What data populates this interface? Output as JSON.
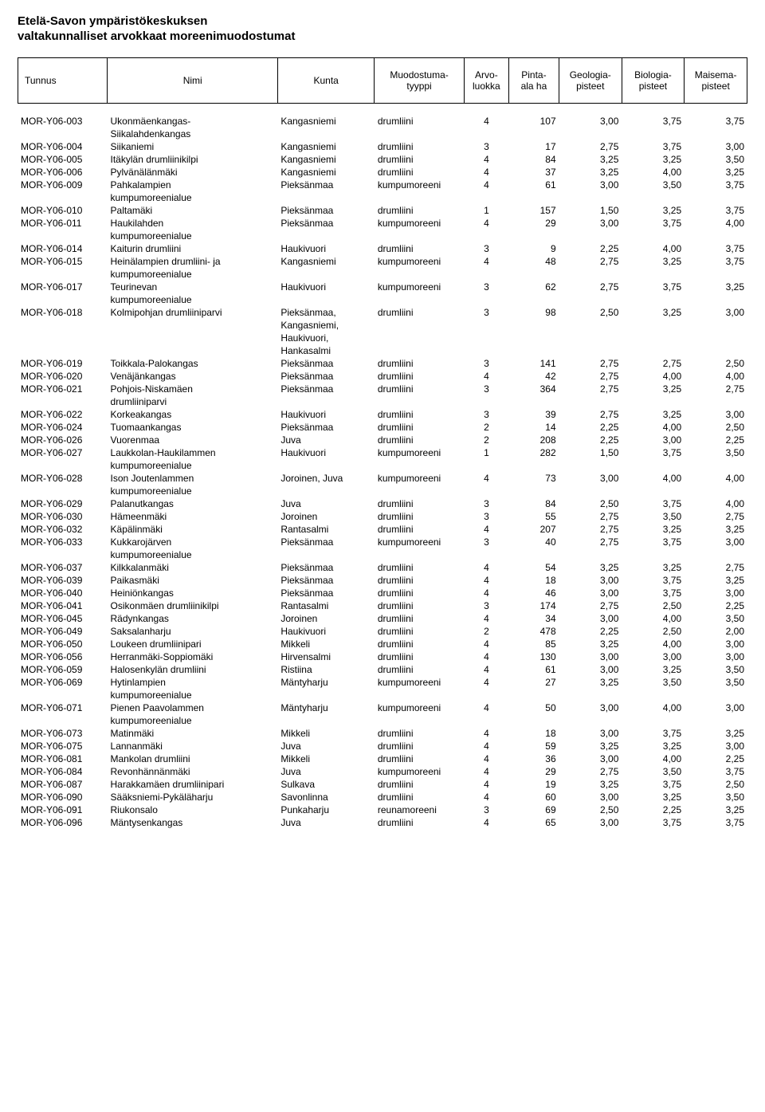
{
  "title_line1": "Etelä-Savon ympäristökeskuksen",
  "title_line2": "valtakunnalliset arvokkaat moreenimuodostumat",
  "columns": {
    "tunnus": "Tunnus",
    "nimi": "Nimi",
    "kunta": "Kunta",
    "tyyppi": "Muodostuma-\ntyyppi",
    "arvo": "Arvo-\nluokka",
    "pinta": "Pinta-\nala ha",
    "geo": "Geologia-\npisteet",
    "bio": "Biologia-\npisteet",
    "mai": "Maisema-\npisteet"
  },
  "rows": [
    {
      "t": "MOR-Y06-003",
      "n1": "Ukonmäenkangas-",
      "n2": "Siikalahdenkangas",
      "k": "Kangasniemi",
      "ty": "drumliini",
      "a": "4",
      "p": "107",
      "g": "3,00",
      "b": "3,75",
      "m": "3,75"
    },
    {
      "t": "MOR-Y06-004",
      "n1": "Siikaniemi",
      "k": "Kangasniemi",
      "ty": "drumliini",
      "a": "3",
      "p": "17",
      "g": "2,75",
      "b": "3,75",
      "m": "3,00"
    },
    {
      "t": "MOR-Y06-005",
      "n1": "Itäkylän drumliinikilpi",
      "k": "Kangasniemi",
      "ty": "drumliini",
      "a": "4",
      "p": "84",
      "g": "3,25",
      "b": "3,25",
      "m": "3,50"
    },
    {
      "t": "MOR-Y06-006",
      "n1": "Pylvänälänmäki",
      "k": "Kangasniemi",
      "ty": "drumliini",
      "a": "4",
      "p": "37",
      "g": "3,25",
      "b": "4,00",
      "m": "3,25"
    },
    {
      "t": "MOR-Y06-009",
      "n1": "Pahkalampien",
      "n2": "kumpumoreenialue",
      "k": "Pieksänmaa",
      "ty": "kumpumoreeni",
      "a": "4",
      "p": "61",
      "g": "3,00",
      "b": "3,50",
      "m": "3,75"
    },
    {
      "t": "MOR-Y06-010",
      "n1": "Paltamäki",
      "k": "Pieksänmaa",
      "ty": "drumliini",
      "a": "1",
      "p": "157",
      "g": "1,50",
      "b": "3,25",
      "m": "3,75"
    },
    {
      "t": "MOR-Y06-011",
      "n1": "Haukilahden",
      "n2": "kumpumoreenialue",
      "k": "Pieksänmaa",
      "ty": "kumpumoreeni",
      "a": "4",
      "p": "29",
      "g": "3,00",
      "b": "3,75",
      "m": "4,00"
    },
    {
      "t": "MOR-Y06-014",
      "n1": "Kaiturin drumliini",
      "k": "Haukivuori",
      "ty": "drumliini",
      "a": "3",
      "p": "9",
      "g": "2,25",
      "b": "4,00",
      "m": "3,75"
    },
    {
      "t": "MOR-Y06-015",
      "n1": "Heinälampien drumliini- ja",
      "n2": "kumpumoreenialue",
      "k": "Kangasniemi",
      "ty": "kumpumoreeni",
      "a": "4",
      "p": "48",
      "g": "2,75",
      "b": "3,25",
      "m": "3,75"
    },
    {
      "t": "MOR-Y06-017",
      "n1": "Teurinevan",
      "n2": "kumpumoreenialue",
      "k": "Haukivuori",
      "ty": "kumpumoreeni",
      "a": "3",
      "p": "62",
      "g": "2,75",
      "b": "3,75",
      "m": "3,25"
    },
    {
      "t": "MOR-Y06-018",
      "n1": "Kolmipohjan drumliiniparvi",
      "k": "Pieksänmaa,",
      "k2": "Kangasniemi,",
      "k3": "Haukivuori,",
      "k4": "Hankasalmi",
      "ty": "drumliini",
      "a": "3",
      "p": "98",
      "g": "2,50",
      "b": "3,25",
      "m": "3,00"
    },
    {
      "t": "MOR-Y06-019",
      "n1": "Toikkala-Palokangas",
      "k": "Pieksänmaa",
      "ty": "drumliini",
      "a": "3",
      "p": "141",
      "g": "2,75",
      "b": "2,75",
      "m": "2,50"
    },
    {
      "t": "MOR-Y06-020",
      "n1": "Venäjänkangas",
      "k": "Pieksänmaa",
      "ty": "drumliini",
      "a": "4",
      "p": "42",
      "g": "2,75",
      "b": "4,00",
      "m": "4,00"
    },
    {
      "t": "MOR-Y06-021",
      "n1": "Pohjois-Niskamäen",
      "n2": "drumliiniparvi",
      "k": "Pieksänmaa",
      "ty": "drumliini",
      "a": "3",
      "p": "364",
      "g": "2,75",
      "b": "3,25",
      "m": "2,75"
    },
    {
      "t": "MOR-Y06-022",
      "n1": "Korkeakangas",
      "k": "Haukivuori",
      "ty": "drumliini",
      "a": "3",
      "p": "39",
      "g": "2,75",
      "b": "3,25",
      "m": "3,00"
    },
    {
      "t": "MOR-Y06-024",
      "n1": "Tuomaankangas",
      "k": "Pieksänmaa",
      "ty": "drumliini",
      "a": "2",
      "p": "14",
      "g": "2,25",
      "b": "4,00",
      "m": "2,50"
    },
    {
      "t": "MOR-Y06-026",
      "n1": "Vuorenmaa",
      "k": "Juva",
      "ty": "drumliini",
      "a": "2",
      "p": "208",
      "g": "2,25",
      "b": "3,00",
      "m": "2,25"
    },
    {
      "t": "MOR-Y06-027",
      "n1": "Laukkolan-Haukilammen",
      "n2": "kumpumoreenialue",
      "k": "Haukivuori",
      "ty": "kumpumoreeni",
      "a": "1",
      "p": "282",
      "g": "1,50",
      "b": "3,75",
      "m": "3,50"
    },
    {
      "t": "MOR-Y06-028",
      "n1": "Ison Joutenlammen",
      "n2": "kumpumoreenialue",
      "k": "Joroinen, Juva",
      "ty": "kumpumoreeni",
      "a": "4",
      "p": "73",
      "g": "3,00",
      "b": "4,00",
      "m": "4,00"
    },
    {
      "t": "MOR-Y06-029",
      "n1": "Palanutkangas",
      "k": "Juva",
      "ty": "drumliini",
      "a": "3",
      "p": "84",
      "g": "2,50",
      "b": "3,75",
      "m": "4,00"
    },
    {
      "t": "MOR-Y06-030",
      "n1": "Hämeenmäki",
      "k": "Joroinen",
      "ty": "drumliini",
      "a": "3",
      "p": "55",
      "g": "2,75",
      "b": "3,50",
      "m": "2,75"
    },
    {
      "t": "MOR-Y06-032",
      "n1": "Käpälinmäki",
      "k": "Rantasalmi",
      "ty": "drumliini",
      "a": "4",
      "p": "207",
      "g": "2,75",
      "b": "3,25",
      "m": "3,25"
    },
    {
      "t": "MOR-Y06-033",
      "n1": "Kukkarojärven",
      "n2": "kumpumoreenialue",
      "k": "Pieksänmaa",
      "ty": "kumpumoreeni",
      "a": "3",
      "p": "40",
      "g": "2,75",
      "b": "3,75",
      "m": "3,00"
    },
    {
      "t": "MOR-Y06-037",
      "n1": "Kilkkalanmäki",
      "k": "Pieksänmaa",
      "ty": "drumliini",
      "a": "4",
      "p": "54",
      "g": "3,25",
      "b": "3,25",
      "m": "2,75"
    },
    {
      "t": "MOR-Y06-039",
      "n1": "Paikasmäki",
      "k": "Pieksänmaa",
      "ty": "drumliini",
      "a": "4",
      "p": "18",
      "g": "3,00",
      "b": "3,75",
      "m": "3,25"
    },
    {
      "t": "MOR-Y06-040",
      "n1": "Heiniönkangas",
      "k": "Pieksänmaa",
      "ty": "drumliini",
      "a": "4",
      "p": "46",
      "g": "3,00",
      "b": "3,75",
      "m": "3,00"
    },
    {
      "t": "MOR-Y06-041",
      "n1": "Osikonmäen drumliinikilpi",
      "k": "Rantasalmi",
      "ty": "drumliini",
      "a": "3",
      "p": "174",
      "g": "2,75",
      "b": "2,50",
      "m": "2,25"
    },
    {
      "t": "MOR-Y06-045",
      "n1": "Rädynkangas",
      "k": "Joroinen",
      "ty": "drumliini",
      "a": "4",
      "p": "34",
      "g": "3,00",
      "b": "4,00",
      "m": "3,50"
    },
    {
      "t": "MOR-Y06-049",
      "n1": "Saksalanharju",
      "k": "Haukivuori",
      "ty": "drumliini",
      "a": "2",
      "p": "478",
      "g": "2,25",
      "b": "2,50",
      "m": "2,00"
    },
    {
      "t": "MOR-Y06-050",
      "n1": "Loukeen drumliinipari",
      "k": "Mikkeli",
      "ty": "drumliini",
      "a": "4",
      "p": "85",
      "g": "3,25",
      "b": "4,00",
      "m": "3,00"
    },
    {
      "t": "MOR-Y06-056",
      "n1": "Herranmäki-Soppiomäki",
      "k": "Hirvensalmi",
      "ty": "drumliini",
      "a": "4",
      "p": "130",
      "g": "3,00",
      "b": "3,00",
      "m": "3,00"
    },
    {
      "t": "MOR-Y06-059",
      "n1": "Halosenkylän drumliini",
      "k": "Ristiina",
      "ty": "drumliini",
      "a": "4",
      "p": "61",
      "g": "3,00",
      "b": "3,25",
      "m": "3,50"
    },
    {
      "t": "MOR-Y06-069",
      "n1": "Hytinlampien",
      "n2": "kumpumoreenialue",
      "k": "Mäntyharju",
      "ty": "kumpumoreeni",
      "a": "4",
      "p": "27",
      "g": "3,25",
      "b": "3,50",
      "m": "3,50"
    },
    {
      "t": "MOR-Y06-071",
      "n1": "Pienen Paavolammen",
      "n2": "kumpumoreenialue",
      "k": "Mäntyharju",
      "ty": "kumpumoreeni",
      "a": "4",
      "p": "50",
      "g": "3,00",
      "b": "4,00",
      "m": "3,00"
    },
    {
      "t": "MOR-Y06-073",
      "n1": "Matinmäki",
      "k": "Mikkeli",
      "ty": "drumliini",
      "a": "4",
      "p": "18",
      "g": "3,00",
      "b": "3,75",
      "m": "3,25"
    },
    {
      "t": "MOR-Y06-075",
      "n1": "Lannanmäki",
      "k": "Juva",
      "ty": "drumliini",
      "a": "4",
      "p": "59",
      "g": "3,25",
      "b": "3,25",
      "m": "3,00"
    },
    {
      "t": "MOR-Y06-081",
      "n1": "Mankolan drumliini",
      "k": "Mikkeli",
      "ty": "drumliini",
      "a": "4",
      "p": "36",
      "g": "3,00",
      "b": "4,00",
      "m": "2,25"
    },
    {
      "t": "MOR-Y06-084",
      "n1": "Revonhännänmäki",
      "k": "Juva",
      "ty": "kumpumoreeni",
      "a": "4",
      "p": "29",
      "g": "2,75",
      "b": "3,50",
      "m": "3,75"
    },
    {
      "t": "MOR-Y06-087",
      "n1": "Harakkamäen drumliinipari",
      "k": "Sulkava",
      "ty": "drumliini",
      "a": "4",
      "p": "19",
      "g": "3,25",
      "b": "3,75",
      "m": "2,50"
    },
    {
      "t": "MOR-Y06-090",
      "n1": "Sääksniemi-Pykäläharju",
      "k": "Savonlinna",
      "ty": "drumliini",
      "a": "4",
      "p": "60",
      "g": "3,00",
      "b": "3,25",
      "m": "3,50"
    },
    {
      "t": "MOR-Y06-091",
      "n1": "Riukonsalo",
      "k": "Punkaharju",
      "ty": "reunamoreeni",
      "a": "3",
      "p": "69",
      "g": "2,50",
      "b": "2,25",
      "m": "3,25"
    },
    {
      "t": "MOR-Y06-096",
      "n1": "Mäntysenkangas",
      "k": "Juva",
      "ty": "drumliini",
      "a": "4",
      "p": "65",
      "g": "3,00",
      "b": "3,75",
      "m": "3,75"
    }
  ]
}
